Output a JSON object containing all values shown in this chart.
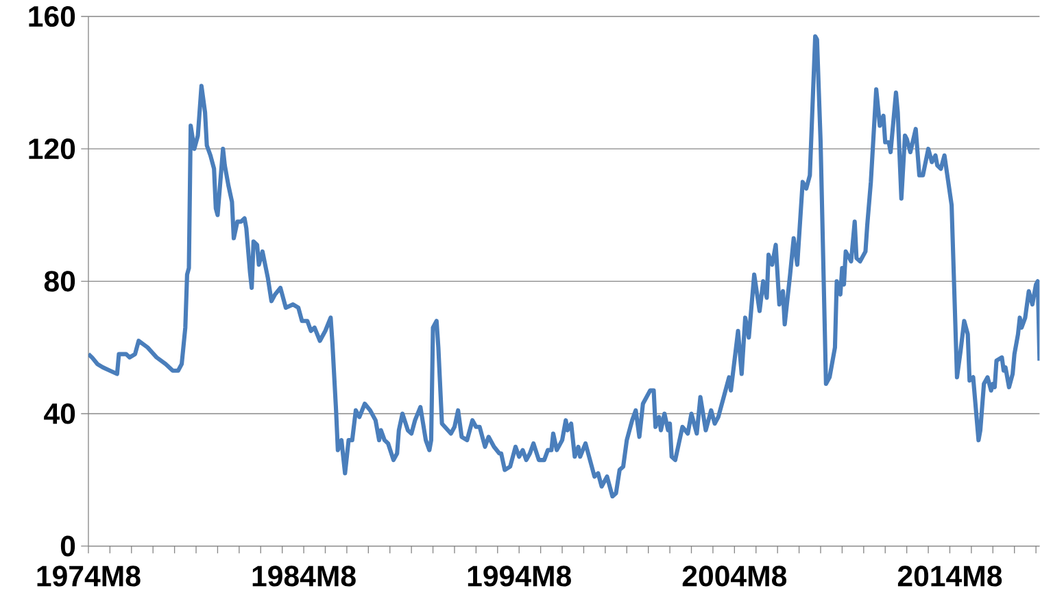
{
  "chart_data": {
    "type": "line",
    "x": [
      "1974-08",
      "1974-10",
      "1975-01",
      "1975-04",
      "1975-08",
      "1975-12",
      "1976-01",
      "1976-05",
      "1976-07",
      "1976-10",
      "1976-12",
      "1977-05",
      "1977-10",
      "1978-03",
      "1978-07",
      "1978-10",
      "1978-12",
      "1979-02",
      "1979-03",
      "1979-04",
      "1979-05",
      "1979-07",
      "1979-09",
      "1979-11",
      "1980-01",
      "1980-02",
      "1980-04",
      "1980-06",
      "1980-07",
      "1980-08",
      "1980-11",
      "1980-12",
      "1981-02",
      "1981-04",
      "1981-05",
      "1981-07",
      "1981-09",
      "1981-11",
      "1981-12",
      "1982-02",
      "1982-03",
      "1982-04",
      "1982-06",
      "1982-07",
      "1982-09",
      "1982-12",
      "1983-02",
      "1983-04",
      "1983-07",
      "1983-10",
      "1984-02",
      "1984-05",
      "1984-07",
      "1984-10",
      "1984-12",
      "1985-02",
      "1985-05",
      "1985-08",
      "1985-11",
      "1985-12",
      "1986-02",
      "1986-03",
      "1986-05",
      "1986-07",
      "1986-09",
      "1986-11",
      "1987-01",
      "1987-03",
      "1987-06",
      "1987-09",
      "1987-12",
      "1988-02",
      "1988-03",
      "1988-05",
      "1988-07",
      "1988-10",
      "1988-12",
      "1989-01",
      "1989-03",
      "1989-06",
      "1989-08",
      "1989-10",
      "1990-01",
      "1990-04",
      "1990-06",
      "1990-07",
      "1990-08",
      "1990-10",
      "1990-11",
      "1991-01",
      "1991-06",
      "1991-08",
      "1991-10",
      "1991-12",
      "1992-03",
      "1992-06",
      "1992-08",
      "1992-10",
      "1993-01",
      "1993-03",
      "1993-06",
      "1993-09",
      "1993-10",
      "1993-12",
      "1994-03",
      "1994-05",
      "1994-06",
      "1994-08",
      "1994-10",
      "1994-12",
      "1995-02",
      "1995-04",
      "1995-07",
      "1995-10",
      "1995-12",
      "1996-02",
      "1996-03",
      "1996-05",
      "1996-08",
      "1996-10",
      "1996-11",
      "1997-01",
      "1997-03",
      "1997-05",
      "1997-06",
      "1997-09",
      "1998-02",
      "1998-04",
      "1998-06",
      "1998-09",
      "1998-12",
      "1999-02",
      "1999-04",
      "1999-06",
      "1999-08",
      "1999-11",
      "2000-01",
      "2000-03",
      "2000-05",
      "2000-09",
      "2000-11",
      "2000-12",
      "2001-02",
      "2001-03",
      "2001-05",
      "2001-07",
      "2001-08",
      "2001-09",
      "2001-11",
      "2002-03",
      "2002-06",
      "2002-08",
      "2002-11",
      "2003-01",
      "2003-04",
      "2003-07",
      "2003-09",
      "2003-11",
      "2004-02",
      "2004-05",
      "2004-06",
      "2004-10",
      "2004-12",
      "2005-02",
      "2005-04",
      "2005-07",
      "2005-10",
      "2005-12",
      "2006-02",
      "2006-03",
      "2006-05",
      "2006-07",
      "2006-09",
      "2006-11",
      "2006-12",
      "2007-03",
      "2007-05",
      "2007-07",
      "2007-10",
      "2007-12",
      "2008-02",
      "2008-05",
      "2008-06",
      "2008-08",
      "2008-11",
      "2009-01",
      "2009-04",
      "2009-05",
      "2009-07",
      "2009-08",
      "2009-09",
      "2009-10",
      "2010-01",
      "2010-03",
      "2010-04",
      "2010-06",
      "2010-09",
      "2010-10",
      "2010-12",
      "2011-03",
      "2011-05",
      "2011-07",
      "2011-08",
      "2011-10",
      "2011-11",
      "2012-02",
      "2012-03",
      "2012-05",
      "2012-07",
      "2012-08",
      "2012-10",
      "2013-01",
      "2013-03",
      "2013-05",
      "2013-08",
      "2013-10",
      "2013-12",
      "2014-01",
      "2014-03",
      "2014-05",
      "2014-09",
      "2014-12",
      "2015-02",
      "2015-04",
      "2015-06",
      "2015-07",
      "2015-09",
      "2015-12",
      "2016-01",
      "2016-03",
      "2016-05",
      "2016-07",
      "2016-08",
      "2016-09",
      "2016-10",
      "2017-01",
      "2017-02",
      "2017-03",
      "2017-05",
      "2017-07",
      "2017-08",
      "2017-10",
      "2017-11",
      "2017-12",
      "2018-02",
      "2018-04",
      "2018-06",
      "2018-08",
      "2018-09",
      "2018-10"
    ],
    "series": [
      {
        "color": "#4a7ebb",
        "values": [
          58,
          57,
          55,
          54,
          53,
          52,
          58,
          58,
          57,
          58,
          62,
          60,
          57,
          55,
          53,
          53,
          55,
          66,
          82,
          84,
          127,
          120,
          124,
          139,
          131,
          121,
          118,
          114,
          102,
          100,
          120,
          115,
          109,
          104,
          93,
          98,
          98,
          99,
          96,
          83,
          78,
          92,
          91,
          85,
          89,
          81,
          74,
          76,
          78,
          72,
          73,
          72,
          68,
          68,
          65,
          66,
          62,
          65,
          69,
          61,
          41,
          29,
          32,
          22,
          32,
          32,
          41,
          39,
          43,
          41,
          38,
          32,
          35,
          32,
          31,
          26,
          28,
          35,
          40,
          35,
          34,
          38,
          42,
          32,
          29,
          32,
          66,
          68,
          60,
          37,
          34,
          36,
          41,
          33,
          32,
          38,
          36,
          36,
          30,
          33,
          30,
          28,
          28,
          23,
          24,
          28,
          30,
          27,
          29,
          26,
          28,
          31,
          26,
          26,
          29,
          29,
          34,
          29,
          32,
          38,
          35,
          37,
          27,
          30,
          27,
          31,
          21,
          22,
          18,
          21,
          15,
          16,
          23,
          24,
          32,
          38,
          41,
          33,
          43,
          47,
          47,
          36,
          39,
          35,
          40,
          35,
          37,
          27,
          26,
          36,
          34,
          40,
          34,
          45,
          35,
          41,
          37,
          39,
          45,
          51,
          47,
          65,
          52,
          69,
          63,
          82,
          71,
          80,
          75,
          88,
          85,
          91,
          73,
          77,
          67,
          82,
          93,
          85,
          110,
          108,
          112,
          154,
          153,
          122,
          49,
          51,
          60,
          80,
          76,
          84,
          79,
          89,
          86,
          98,
          87,
          86,
          89,
          97,
          110,
          138,
          127,
          130,
          122,
          122,
          119,
          137,
          131,
          105,
          124,
          123,
          119,
          126,
          112,
          112,
          120,
          116,
          118,
          115,
          114,
          118,
          103,
          51,
          59,
          68,
          64,
          50,
          51,
          32,
          35,
          49,
          51,
          47,
          49,
          48,
          56,
          57,
          53,
          54,
          48,
          52,
          58,
          64,
          69,
          66,
          69,
          77,
          73,
          79,
          80,
          56
        ]
      }
    ],
    "xlim": [
      "1974-08",
      "2018-10"
    ],
    "xticks": [
      {
        "value": "1974-08",
        "label": "1974M8"
      },
      {
        "value": "1975-08",
        "label": null
      },
      {
        "value": "1976-08",
        "label": null
      },
      {
        "value": "1977-08",
        "label": null
      },
      {
        "value": "1978-08",
        "label": null
      },
      {
        "value": "1979-08",
        "label": null
      },
      {
        "value": "1980-08",
        "label": null
      },
      {
        "value": "1981-08",
        "label": null
      },
      {
        "value": "1982-08",
        "label": null
      },
      {
        "value": "1983-08",
        "label": null
      },
      {
        "value": "1984-08",
        "label": "1984M8"
      },
      {
        "value": "1985-08",
        "label": null
      },
      {
        "value": "1986-08",
        "label": null
      },
      {
        "value": "1987-08",
        "label": null
      },
      {
        "value": "1988-08",
        "label": null
      },
      {
        "value": "1989-08",
        "label": null
      },
      {
        "value": "1990-08",
        "label": null
      },
      {
        "value": "1991-08",
        "label": null
      },
      {
        "value": "1992-08",
        "label": null
      },
      {
        "value": "1993-08",
        "label": null
      },
      {
        "value": "1994-08",
        "label": "1994M8"
      },
      {
        "value": "1995-08",
        "label": null
      },
      {
        "value": "1996-08",
        "label": null
      },
      {
        "value": "1997-08",
        "label": null
      },
      {
        "value": "1998-08",
        "label": null
      },
      {
        "value": "1999-08",
        "label": null
      },
      {
        "value": "2000-08",
        "label": null
      },
      {
        "value": "2001-08",
        "label": null
      },
      {
        "value": "2002-08",
        "label": null
      },
      {
        "value": "2003-08",
        "label": null
      },
      {
        "value": "2004-08",
        "label": "2004M8"
      },
      {
        "value": "2005-08",
        "label": null
      },
      {
        "value": "2006-08",
        "label": null
      },
      {
        "value": "2007-08",
        "label": null
      },
      {
        "value": "2008-08",
        "label": null
      },
      {
        "value": "2009-08",
        "label": null
      },
      {
        "value": "2010-08",
        "label": null
      },
      {
        "value": "2011-08",
        "label": null
      },
      {
        "value": "2012-08",
        "label": null
      },
      {
        "value": "2013-08",
        "label": null
      },
      {
        "value": "2014-08",
        "label": "2014M8"
      },
      {
        "value": "2015-08",
        "label": null
      },
      {
        "value": "2016-08",
        "label": null
      },
      {
        "value": "2017-08",
        "label": null
      },
      {
        "value": "2018-08",
        "label": null
      }
    ],
    "ylim": [
      0,
      160
    ],
    "yticks": [
      0,
      40,
      80,
      120,
      160
    ],
    "grid": "y"
  }
}
